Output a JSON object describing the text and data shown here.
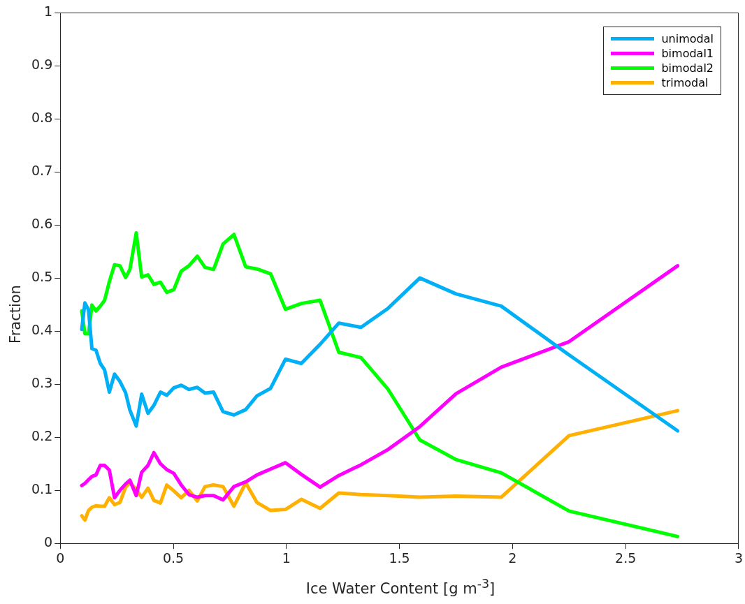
{
  "chart_data": {
    "type": "line",
    "xlabel": "Ice Water Content [g m$^{-3}$]",
    "ylabel": "Fraction",
    "x": [
      0.095,
      0.109,
      0.125,
      0.14,
      0.158,
      0.177,
      0.196,
      0.217,
      0.24,
      0.264,
      0.289,
      0.308,
      0.336,
      0.36,
      0.388,
      0.414,
      0.443,
      0.471,
      0.502,
      0.535,
      0.569,
      0.606,
      0.64,
      0.678,
      0.72,
      0.768,
      0.82,
      0.87,
      0.93,
      0.996,
      1.066,
      1.149,
      1.232,
      1.33,
      1.45,
      1.59,
      1.75,
      1.95,
      2.25,
      2.73
    ],
    "series": [
      {
        "name": "unimodal",
        "color": "#00b0f6",
        "values": [
          0.403,
          0.453,
          0.44,
          0.367,
          0.364,
          0.339,
          0.327,
          0.285,
          0.319,
          0.305,
          0.284,
          0.251,
          0.221,
          0.281,
          0.245,
          0.26,
          0.285,
          0.279,
          0.293,
          0.298,
          0.29,
          0.294,
          0.283,
          0.285,
          0.248,
          0.242,
          0.252,
          0.278,
          0.292,
          0.347,
          0.339,
          0.375,
          0.415,
          0.407,
          0.443,
          0.5,
          0.47,
          0.447,
          0.355,
          0.212
        ]
      },
      {
        "name": "bimodal1",
        "color": "#ff00ff",
        "values": [
          0.109,
          0.113,
          0.12,
          0.126,
          0.129,
          0.147,
          0.147,
          0.138,
          0.086,
          0.1,
          0.112,
          0.119,
          0.09,
          0.134,
          0.147,
          0.171,
          0.15,
          0.139,
          0.132,
          0.11,
          0.092,
          0.087,
          0.09,
          0.09,
          0.082,
          0.107,
          0.116,
          0.129,
          0.14,
          0.152,
          0.13,
          0.106,
          0.128,
          0.148,
          0.177,
          0.22,
          0.282,
          0.332,
          0.38,
          0.523
        ]
      },
      {
        "name": "bimodal2",
        "color": "#00ff00",
        "values": [
          0.438,
          0.395,
          0.395,
          0.449,
          0.438,
          0.447,
          0.458,
          0.493,
          0.525,
          0.523,
          0.501,
          0.516,
          0.585,
          0.502,
          0.506,
          0.488,
          0.492,
          0.473,
          0.478,
          0.513,
          0.523,
          0.541,
          0.52,
          0.516,
          0.564,
          0.582,
          0.521,
          0.517,
          0.508,
          0.441,
          0.452,
          0.458,
          0.36,
          0.35,
          0.29,
          0.195,
          0.158,
          0.133,
          0.061,
          0.013
        ]
      },
      {
        "name": "trimodal",
        "color": "#ffb000",
        "values": [
          0.052,
          0.044,
          0.062,
          0.068,
          0.071,
          0.07,
          0.07,
          0.086,
          0.073,
          0.077,
          0.106,
          0.114,
          0.102,
          0.087,
          0.104,
          0.081,
          0.076,
          0.11,
          0.099,
          0.086,
          0.1,
          0.08,
          0.107,
          0.11,
          0.107,
          0.07,
          0.114,
          0.077,
          0.062,
          0.064,
          0.083,
          0.066,
          0.095,
          0.092,
          0.09,
          0.087,
          0.089,
          0.087,
          0.203,
          0.25
        ]
      }
    ],
    "xlim": [
      0,
      3
    ],
    "xticks": [
      0,
      0.5,
      1,
      1.5,
      2,
      2.5,
      3
    ],
    "ylim": [
      0,
      1
    ],
    "yticks": [
      0,
      0.1,
      0.2,
      0.3,
      0.4,
      0.5,
      0.6,
      0.7,
      0.8,
      0.9,
      1
    ],
    "grid": false,
    "legend": "top right",
    "marker": "none",
    "line_style": "solid"
  }
}
